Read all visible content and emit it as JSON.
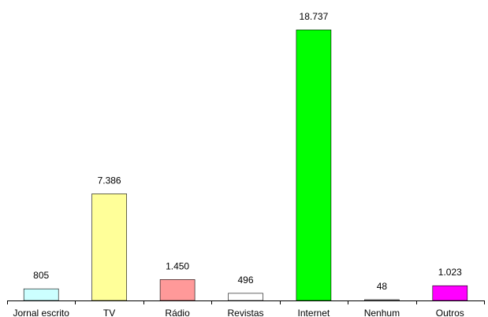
{
  "chart_data": {
    "type": "bar",
    "categories": [
      "Jornal escrito",
      "TV",
      "Rádio",
      "Revistas",
      "Internet",
      "Nenhum",
      "Outros"
    ],
    "values": [
      805,
      7386,
      1450,
      496,
      18737,
      48,
      1023
    ],
    "value_labels": [
      "805",
      "7.386",
      "1.450",
      "496",
      "18.737",
      "48",
      "1.023"
    ],
    "colors": [
      "#ccffff",
      "#ffff99",
      "#ff9999",
      "#ffffff",
      "#00ff00",
      "#ffffff",
      "#ff00ff"
    ],
    "title": "",
    "xlabel": "",
    "ylabel": "",
    "ylim": [
      0,
      18737
    ],
    "grid": false,
    "legend": "none"
  }
}
